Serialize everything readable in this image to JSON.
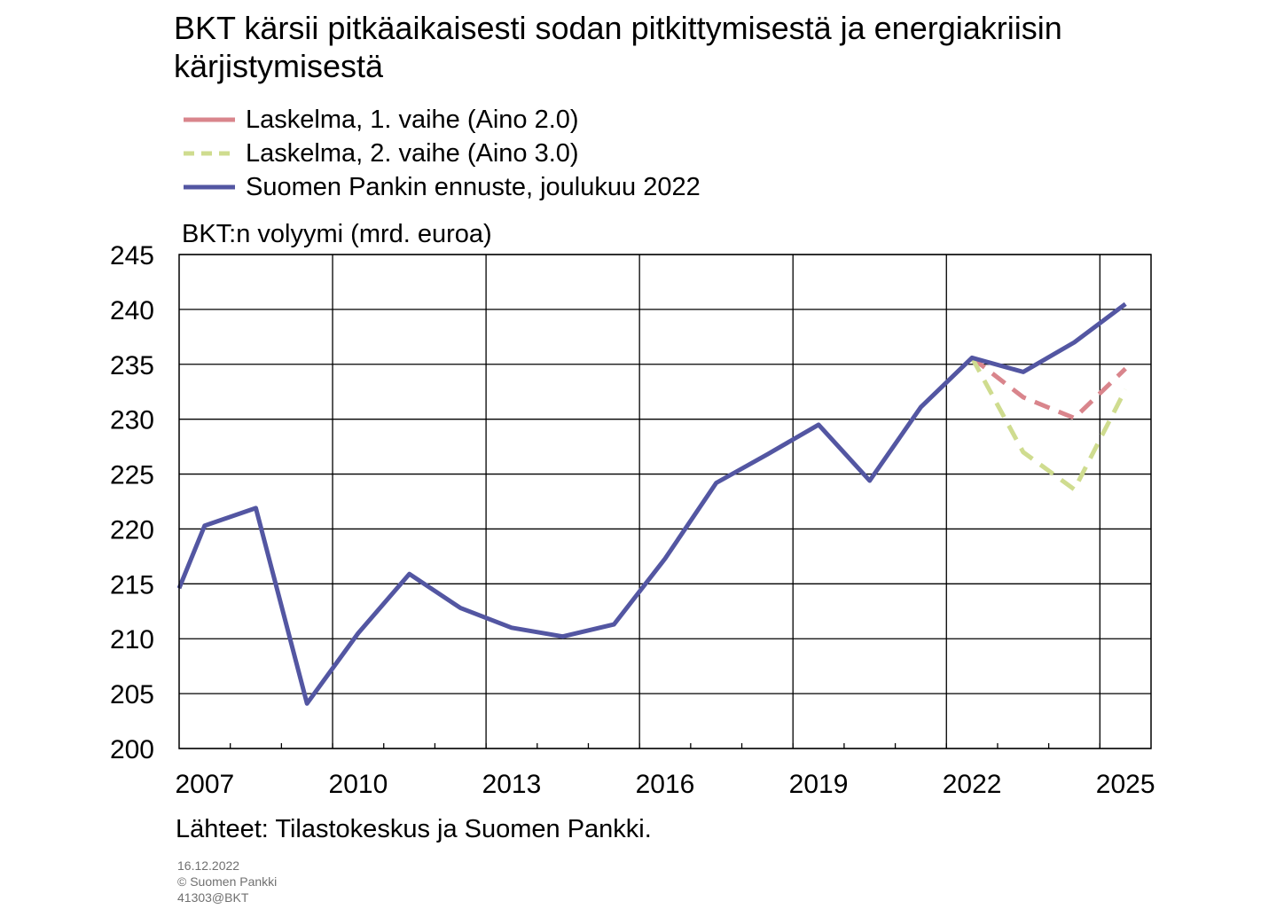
{
  "title": "BKT kärsii pitkäaikaisesti sodan pitkittymisestä ja energiakriisin kärjistymisestä",
  "legend": [
    {
      "label": "Laskelma, 1. vaihe (Aino 2.0)",
      "color": "#d9858c",
      "style": "dashed"
    },
    {
      "label": "Laskelma, 2. vaihe (Aino 3.0)",
      "color": "#cfdc8f",
      "style": "dashed"
    },
    {
      "label": "Suomen Pankin ennuste, joulukuu 2022",
      "color": "#5356a2",
      "style": "solid"
    }
  ],
  "ylabel": "BKT:n volyymi  (mrd. euroa)",
  "source": "Lähteet:  Tilastokeskus  ja Suomen  Pankki.",
  "footer": {
    "date": "16.12.2022",
    "copyright": "© Suomen  Pankki",
    "code": "41303@BKT"
  },
  "chart_data": {
    "type": "line",
    "title": "BKT kärsii pitkäaikaisesti sodan pitkittymisestä ja energiakriisin kärjistymisestä",
    "ylabel": "BKT:n volyymi  (mrd. euroa)",
    "xlabel": "",
    "ylim": [
      200,
      245
    ],
    "yticks": [
      200,
      205,
      210,
      215,
      220,
      225,
      230,
      235,
      240,
      245
    ],
    "xlim": [
      2005.5,
      2024.5
    ],
    "xticks": [
      "2007",
      "2010",
      "2013",
      "2016",
      "2019",
      "2022",
      "2025"
    ],
    "grid": true,
    "legend_position": "top",
    "series": [
      {
        "name": "Laskelma, 1. vaihe (Aino 2.0)",
        "color": "#d9858c",
        "dashed": true,
        "x": [
          2021.0,
          2022.0,
          2023.0,
          2024.0
        ],
        "values": [
          235.6,
          232.0,
          230.1,
          234.6
        ]
      },
      {
        "name": "Laskelma, 2. vaihe (Aino 3.0)",
        "color": "#cfdc8f",
        "dashed": true,
        "x": [
          2021.0,
          2022.0,
          2023.0,
          2024.0
        ],
        "values": [
          235.6,
          227.0,
          223.6,
          232.7
        ]
      },
      {
        "name": "Suomen Pankin ennuste, joulukuu 2022",
        "color": "#5356a2",
        "dashed": false,
        "x": [
          2005.5,
          2006.0,
          2007.0,
          2008.0,
          2009.0,
          2010.0,
          2011.0,
          2012.0,
          2013.0,
          2014.0,
          2015.0,
          2016.0,
          2017.0,
          2018.0,
          2019.0,
          2020.0,
          2021.0,
          2022.0,
          2023.0,
          2024.0
        ],
        "values": [
          214.6,
          220.3,
          221.9,
          204.1,
          210.5,
          215.9,
          212.8,
          211.0,
          210.2,
          211.3,
          217.3,
          224.2,
          226.8,
          229.5,
          224.4,
          231.1,
          235.6,
          234.3,
          237.0,
          240.5
        ]
      }
    ]
  }
}
